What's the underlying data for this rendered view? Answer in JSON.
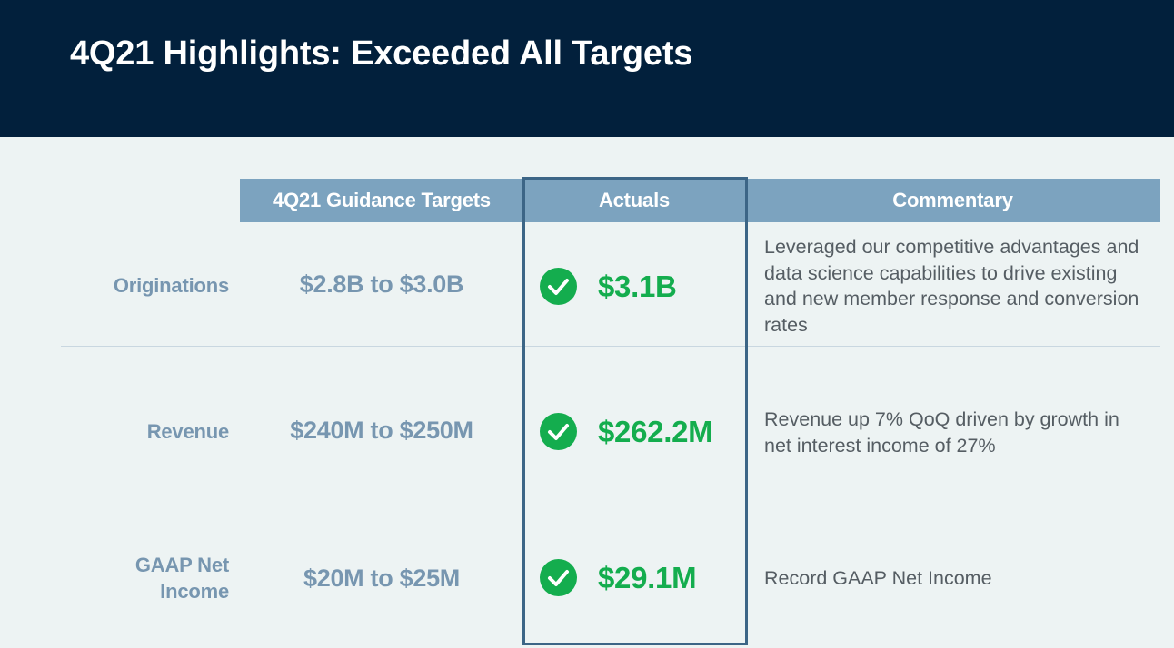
{
  "slide": {
    "title": "4Q21 Highlights: Exceeded All Targets"
  },
  "table": {
    "headers": {
      "targets": "4Q21 Guidance Targets",
      "actuals": "Actuals",
      "commentary": "Commentary"
    },
    "rows": [
      {
        "label": "Originations",
        "target": "$2.8B to $3.0B",
        "actual": "$3.1B",
        "commentary": "Leveraged our competitive advantages and data science capabilities to drive existing and new member response and conversion rates"
      },
      {
        "label": "Revenue",
        "target": "$240M to $250M",
        "actual": "$262.2M",
        "commentary": "Revenue up 7% QoQ driven by growth in net interest income of 27%"
      },
      {
        "label": "GAAP Net Income",
        "target": "$20M to $25M",
        "actual": "$29.1M",
        "commentary": "Record GAAP Net Income"
      }
    ]
  },
  "colors": {
    "header_bg": "#02203c",
    "column_header_bg": "#7ca3bf",
    "label_text": "#7796b0",
    "actual_green": "#14ad4e",
    "frame": "#3c6586"
  },
  "icons": {
    "status": "check-circle-icon"
  }
}
